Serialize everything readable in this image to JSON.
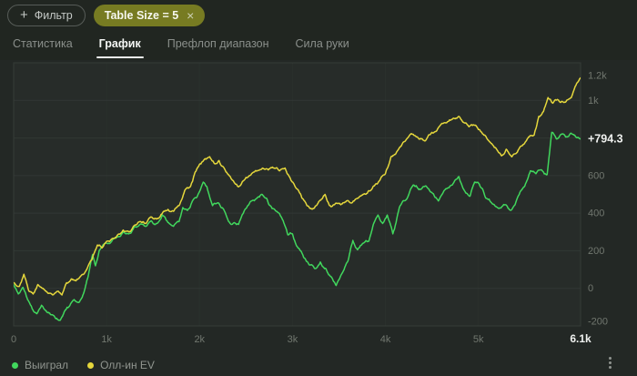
{
  "filters": {
    "add_button_label": "Фильтр",
    "add_button_icon": "plus-icon",
    "chip": {
      "label": "Table Size = 5",
      "close_icon": "×"
    }
  },
  "tabs": [
    {
      "label": "Статистика",
      "active": false
    },
    {
      "label": "График",
      "active": true
    },
    {
      "label": "Префлоп диапазон",
      "active": false
    },
    {
      "label": "Сила руки",
      "active": false
    }
  ],
  "colors": {
    "page_bg": "#212621",
    "panel_bg": "#232825",
    "plot_bg": "#272c29",
    "plot_border": "#363c38",
    "grid_major": "#313734",
    "grid_minor": "#2a302c",
    "axis_text": "#71776f",
    "bright_text": "#eff1ef",
    "green": "#41d75d",
    "yellow": "#e5d73c"
  },
  "chart_data": {
    "type": "line",
    "title": "",
    "xlabel": "",
    "ylabel": "",
    "xlim": [
      0,
      6100
    ],
    "ylim": [
      -200,
      1200
    ],
    "grid": "horizontal-major",
    "legend_position": "bottom-left",
    "x_ticks": [
      {
        "value": 0,
        "label": "0",
        "bold": false
      },
      {
        "value": 1000,
        "label": "1k",
        "bold": false
      },
      {
        "value": 2000,
        "label": "2k",
        "bold": false
      },
      {
        "value": 3000,
        "label": "3k",
        "bold": false
      },
      {
        "value": 4000,
        "label": "4k",
        "bold": false
      },
      {
        "value": 5000,
        "label": "5k",
        "bold": false
      },
      {
        "value": 6100,
        "label": "6.1k",
        "bold": true
      }
    ],
    "y_ticks": [
      {
        "value": -200,
        "label": "-200"
      },
      {
        "value": 0,
        "label": "0"
      },
      {
        "value": 200,
        "label": "200"
      },
      {
        "value": 400,
        "label": "400"
      },
      {
        "value": 600,
        "label": "600"
      },
      {
        "value": 800,
        "label": ""
      },
      {
        "value": 1000,
        "label": "1k"
      },
      {
        "value": 1200,
        "label": "1.2k"
      }
    ],
    "current_value_label": "+794.3",
    "series": [
      {
        "name": "Выиграл",
        "color": "#41d75d",
        "end_value": 794.3,
        "points": [
          [
            0,
            20
          ],
          [
            50,
            -30
          ],
          [
            100,
            5
          ],
          [
            150,
            -60
          ],
          [
            200,
            -110
          ],
          [
            250,
            -135
          ],
          [
            300,
            -90
          ],
          [
            350,
            -120
          ],
          [
            400,
            -140
          ],
          [
            450,
            -160
          ],
          [
            500,
            -170
          ],
          [
            550,
            -120
          ],
          [
            600,
            -95
          ],
          [
            650,
            -60
          ],
          [
            700,
            -75
          ],
          [
            750,
            -30
          ],
          [
            800,
            60
          ],
          [
            850,
            180
          ],
          [
            880,
            120
          ],
          [
            920,
            200
          ],
          [
            960,
            230
          ],
          [
            1000,
            240
          ],
          [
            1060,
            255
          ],
          [
            1120,
            275
          ],
          [
            1180,
            300
          ],
          [
            1240,
            290
          ],
          [
            1300,
            330
          ],
          [
            1360,
            340
          ],
          [
            1420,
            330
          ],
          [
            1480,
            360
          ],
          [
            1540,
            345
          ],
          [
            1600,
            390
          ],
          [
            1660,
            350
          ],
          [
            1720,
            330
          ],
          [
            1780,
            355
          ],
          [
            1820,
            430
          ],
          [
            1870,
            415
          ],
          [
            1930,
            470
          ],
          [
            2000,
            515
          ],
          [
            2040,
            565
          ],
          [
            2080,
            540
          ],
          [
            2140,
            440
          ],
          [
            2200,
            455
          ],
          [
            2260,
            420
          ],
          [
            2330,
            345
          ],
          [
            2420,
            340
          ],
          [
            2500,
            425
          ],
          [
            2560,
            465
          ],
          [
            2620,
            480
          ],
          [
            2670,
            500
          ],
          [
            2720,
            480
          ],
          [
            2780,
            425
          ],
          [
            2840,
            405
          ],
          [
            2900,
            360
          ],
          [
            2950,
            285
          ],
          [
            3000,
            290
          ],
          [
            3060,
            215
          ],
          [
            3120,
            165
          ],
          [
            3180,
            125
          ],
          [
            3240,
            105
          ],
          [
            3300,
            140
          ],
          [
            3360,
            105
          ],
          [
            3420,
            60
          ],
          [
            3470,
            15
          ],
          [
            3540,
            85
          ],
          [
            3600,
            150
          ],
          [
            3650,
            255
          ],
          [
            3700,
            205
          ],
          [
            3760,
            240
          ],
          [
            3820,
            250
          ],
          [
            3870,
            340
          ],
          [
            3920,
            390
          ],
          [
            3970,
            345
          ],
          [
            4020,
            390
          ],
          [
            4080,
            290
          ],
          [
            4150,
            430
          ],
          [
            4220,
            470
          ],
          [
            4300,
            550
          ],
          [
            4360,
            525
          ],
          [
            4430,
            545
          ],
          [
            4500,
            510
          ],
          [
            4570,
            465
          ],
          [
            4650,
            530
          ],
          [
            4720,
            550
          ],
          [
            4790,
            595
          ],
          [
            4850,
            520
          ],
          [
            4910,
            490
          ],
          [
            4960,
            565
          ],
          [
            5010,
            555
          ],
          [
            5080,
            480
          ],
          [
            5150,
            450
          ],
          [
            5220,
            425
          ],
          [
            5290,
            445
          ],
          [
            5350,
            415
          ],
          [
            5440,
            500
          ],
          [
            5500,
            545
          ],
          [
            5560,
            625
          ],
          [
            5620,
            610
          ],
          [
            5680,
            630
          ],
          [
            5740,
            605
          ],
          [
            5790,
            830
          ],
          [
            5840,
            795
          ],
          [
            5890,
            820
          ],
          [
            5940,
            805
          ],
          [
            6000,
            825
          ],
          [
            6050,
            805
          ],
          [
            6100,
            794.3
          ]
        ]
      },
      {
        "name": "Олл-ин EV",
        "color": "#e5d73c",
        "end_value": 1120,
        "points": [
          [
            0,
            30
          ],
          [
            60,
            10
          ],
          [
            110,
            75
          ],
          [
            160,
            -10
          ],
          [
            210,
            -30
          ],
          [
            260,
            20
          ],
          [
            310,
            0
          ],
          [
            360,
            -20
          ],
          [
            420,
            -35
          ],
          [
            480,
            -15
          ],
          [
            520,
            -35
          ],
          [
            570,
            30
          ],
          [
            620,
            50
          ],
          [
            670,
            40
          ],
          [
            720,
            65
          ],
          [
            780,
            95
          ],
          [
            840,
            150
          ],
          [
            900,
            230
          ],
          [
            950,
            215
          ],
          [
            1000,
            250
          ],
          [
            1060,
            265
          ],
          [
            1120,
            285
          ],
          [
            1180,
            310
          ],
          [
            1240,
            300
          ],
          [
            1300,
            335
          ],
          [
            1360,
            355
          ],
          [
            1420,
            345
          ],
          [
            1480,
            380
          ],
          [
            1540,
            370
          ],
          [
            1600,
            400
          ],
          [
            1660,
            420
          ],
          [
            1720,
            410
          ],
          [
            1780,
            440
          ],
          [
            1840,
            520
          ],
          [
            1900,
            540
          ],
          [
            1950,
            615
          ],
          [
            2000,
            660
          ],
          [
            2060,
            690
          ],
          [
            2110,
            700
          ],
          [
            2160,
            665
          ],
          [
            2210,
            680
          ],
          [
            2270,
            635
          ],
          [
            2330,
            595
          ],
          [
            2420,
            540
          ],
          [
            2500,
            590
          ],
          [
            2560,
            610
          ],
          [
            2620,
            625
          ],
          [
            2680,
            640
          ],
          [
            2740,
            630
          ],
          [
            2800,
            640
          ],
          [
            2860,
            625
          ],
          [
            2920,
            640
          ],
          [
            2960,
            600
          ],
          [
            3010,
            560
          ],
          [
            3070,
            515
          ],
          [
            3130,
            465
          ],
          [
            3180,
            430
          ],
          [
            3230,
            425
          ],
          [
            3290,
            465
          ],
          [
            3350,
            500
          ],
          [
            3400,
            440
          ],
          [
            3460,
            450
          ],
          [
            3520,
            445
          ],
          [
            3580,
            465
          ],
          [
            3640,
            455
          ],
          [
            3700,
            480
          ],
          [
            3760,
            500
          ],
          [
            3820,
            520
          ],
          [
            3880,
            545
          ],
          [
            3940,
            575
          ],
          [
            4000,
            610
          ],
          [
            4060,
            700
          ],
          [
            4120,
            725
          ],
          [
            4200,
            780
          ],
          [
            4290,
            820
          ],
          [
            4360,
            795
          ],
          [
            4430,
            785
          ],
          [
            4500,
            830
          ],
          [
            4570,
            855
          ],
          [
            4650,
            880
          ],
          [
            4730,
            905
          ],
          [
            4790,
            915
          ],
          [
            4850,
            880
          ],
          [
            4900,
            860
          ],
          [
            4950,
            870
          ],
          [
            5000,
            845
          ],
          [
            5060,
            815
          ],
          [
            5120,
            780
          ],
          [
            5190,
            745
          ],
          [
            5250,
            705
          ],
          [
            5300,
            740
          ],
          [
            5360,
            700
          ],
          [
            5420,
            725
          ],
          [
            5480,
            765
          ],
          [
            5540,
            805
          ],
          [
            5600,
            815
          ],
          [
            5650,
            915
          ],
          [
            5700,
            940
          ],
          [
            5750,
            1015
          ],
          [
            5800,
            985
          ],
          [
            5850,
            1005
          ],
          [
            5900,
            995
          ],
          [
            5950,
            1000
          ],
          [
            6000,
            1015
          ],
          [
            6050,
            1080
          ],
          [
            6100,
            1120
          ]
        ]
      }
    ]
  },
  "footer": {
    "menu_icon": "kebab-menu-icon"
  }
}
